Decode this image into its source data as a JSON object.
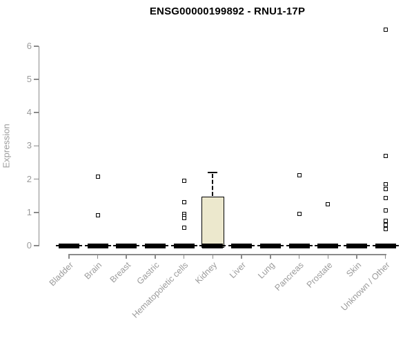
{
  "page": {
    "title": "ENSG00000199892 - RNU1-17P"
  },
  "chart_data": {
    "type": "boxplot",
    "title": "ENSG00000199892 - RNU1-17P",
    "xlabel": "",
    "ylabel": "Expression",
    "ylim": [
      0,
      6.6
    ],
    "yticks": [
      0,
      1,
      2,
      3,
      4,
      5,
      6
    ],
    "grid": false,
    "legend": "none",
    "categories": [
      "Bladder",
      "Brain",
      "Breast",
      "Gastric",
      "Hematopoietic cells",
      "Kidney",
      "Liver",
      "Lung",
      "Pancreas",
      "Prostate",
      "Skin",
      "Unknown / Other"
    ],
    "boxes": [
      {
        "category": "Bladder",
        "q1": 0,
        "median": 0,
        "q3": 0,
        "whisker_low": 0,
        "whisker_high": 0,
        "outliers": []
      },
      {
        "category": "Brain",
        "q1": 0,
        "median": 0,
        "q3": 0,
        "whisker_low": 0,
        "whisker_high": 0,
        "outliers": [
          2.08,
          0.91
        ]
      },
      {
        "category": "Breast",
        "q1": 0,
        "median": 0,
        "q3": 0,
        "whisker_low": 0,
        "whisker_high": 0,
        "outliers": []
      },
      {
        "category": "Gastric",
        "q1": 0,
        "median": 0,
        "q3": 0,
        "whisker_low": 0,
        "whisker_high": 0,
        "outliers": []
      },
      {
        "category": "Hematopoietic cells",
        "q1": 0,
        "median": 0,
        "q3": 0,
        "whisker_low": 0,
        "whisker_high": 0,
        "outliers": [
          1.95,
          1.31,
          0.95,
          0.89,
          0.83,
          0.54
        ]
      },
      {
        "category": "Kidney",
        "q1": 0,
        "median": 0,
        "q3": 1.47,
        "whisker_low": 0,
        "whisker_high": 2.19,
        "outliers": []
      },
      {
        "category": "Liver",
        "q1": 0,
        "median": 0,
        "q3": 0,
        "whisker_low": 0,
        "whisker_high": 0,
        "outliers": []
      },
      {
        "category": "Lung",
        "q1": 0,
        "median": 0,
        "q3": 0,
        "whisker_low": 0,
        "whisker_high": 0,
        "outliers": []
      },
      {
        "category": "Pancreas",
        "q1": 0,
        "median": 0,
        "q3": 0,
        "whisker_low": 0,
        "whisker_high": 0,
        "outliers": [
          2.11,
          0.95
        ]
      },
      {
        "category": "Prostate",
        "q1": 0,
        "median": 0,
        "q3": 0,
        "whisker_low": 0,
        "whisker_high": 0,
        "outliers": [
          1.24
        ]
      },
      {
        "category": "Skin",
        "q1": 0,
        "median": 0,
        "q3": 0,
        "whisker_low": 0,
        "whisker_high": 0,
        "outliers": []
      },
      {
        "category": "Unknown / Other",
        "q1": 0,
        "median": 0,
        "q3": 0,
        "whisker_low": 0,
        "whisker_high": 0,
        "outliers": [
          6.49,
          2.69,
          1.85,
          1.7,
          1.43,
          1.06,
          0.74,
          0.62,
          0.5
        ]
      }
    ],
    "colors": {
      "box_fill": "#ece8cd",
      "box_border": "#000000",
      "median": "#000000",
      "whisker": "#000000",
      "outlier_fill": "#ffffff",
      "outlier_border": "#000000",
      "axis_line": "#8a8a8a",
      "tick_label": "#9b9b9b",
      "title": "#000000",
      "background": "#ffffff"
    }
  }
}
